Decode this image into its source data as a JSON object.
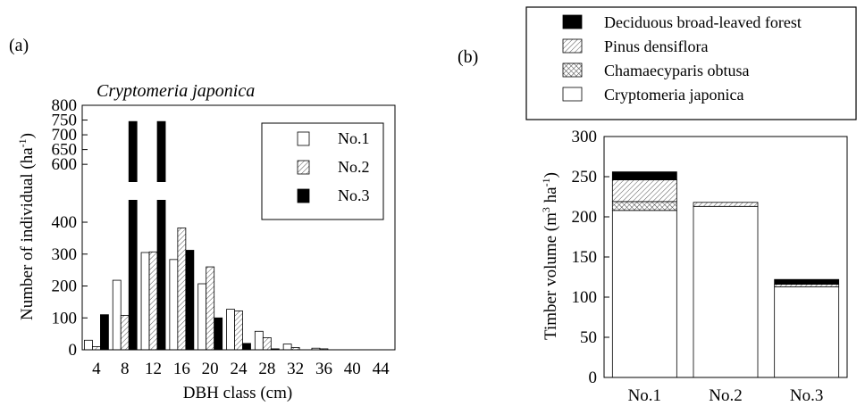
{
  "panel_a": {
    "label": "(a)",
    "species_title": "Cryptomeria japonica",
    "ylabel_main": "Number of individual (ha",
    "ylabel_sup": "-1",
    "ylabel_close": ")",
    "xlabel": "DBH class (cm)"
  },
  "panel_b": {
    "label": "(b)",
    "ylabel_pre": "Timber volume (m",
    "ylabel_sup1": "3",
    "ylabel_mid": " ha",
    "ylabel_sup2": "-1",
    "ylabel_close": ")"
  },
  "chart_data": [
    {
      "type": "bar",
      "title": "Cryptomeria japonica",
      "xlabel": "DBH class (cm)",
      "ylabel": "Number of individual (ha-1)",
      "categories": [
        "4",
        "8",
        "12",
        "16",
        "20",
        "24",
        "28",
        "32",
        "36",
        "40",
        "44"
      ],
      "x_ticks": [
        "4",
        "8",
        "12",
        "16",
        "20",
        "24",
        "28",
        "32",
        "36",
        "40",
        "44"
      ],
      "y_axis_broken": true,
      "y_ticks_lower": [
        "0",
        "100",
        "200",
        "300",
        "400"
      ],
      "y_ticks_upper": [
        "600",
        "650",
        "700",
        "750",
        "800"
      ],
      "ylim_lower": [
        0,
        470
      ],
      "ylim_upper": [
        540,
        800
      ],
      "legend_position": "top-right",
      "legend": [
        {
          "name": "No.1",
          "pattern": "white"
        },
        {
          "name": "No.2",
          "pattern": "hatched"
        },
        {
          "name": "No.3",
          "pattern": "black"
        }
      ],
      "series": [
        {
          "name": "No.1",
          "values": [
            30,
            218,
            305,
            283,
            207,
            127,
            58,
            18,
            5,
            0,
            0
          ]
        },
        {
          "name": "No.2",
          "values": [
            10,
            108,
            307,
            382,
            260,
            122,
            38,
            7,
            3,
            0,
            0
          ]
        },
        {
          "name": "No.3",
          "values": [
            110,
            745,
            745,
            312,
            100,
            20,
            3,
            0,
            0,
            0,
            0
          ]
        }
      ]
    },
    {
      "type": "bar",
      "stacked": true,
      "ylabel": "Timber volume (m3 ha-1)",
      "categories": [
        "No.1",
        "No.2",
        "No.3"
      ],
      "y_ticks": [
        "0",
        "50",
        "100",
        "150",
        "200",
        "250",
        "300"
      ],
      "ylim": [
        0,
        300
      ],
      "legend_position": "top",
      "legend": [
        {
          "name": "Deciduous broad-leaved forest",
          "pattern": "black"
        },
        {
          "name": "Pinus densiflora",
          "pattern": "hatched"
        },
        {
          "name": "Chamaecyparis obtusa",
          "pattern": "crosshatched"
        },
        {
          "name": "Cryptomeria japonica",
          "pattern": "white"
        }
      ],
      "series": [
        {
          "name": "Cryptomeria japonica",
          "values": [
            208,
            213,
            113
          ]
        },
        {
          "name": "Chamaecyparis obtusa",
          "values": [
            11,
            0,
            0
          ]
        },
        {
          "name": "Pinus densiflora",
          "values": [
            27,
            5,
            3
          ]
        },
        {
          "name": "Deciduous broad-leaved forest",
          "values": [
            10,
            0,
            6
          ]
        }
      ]
    }
  ]
}
